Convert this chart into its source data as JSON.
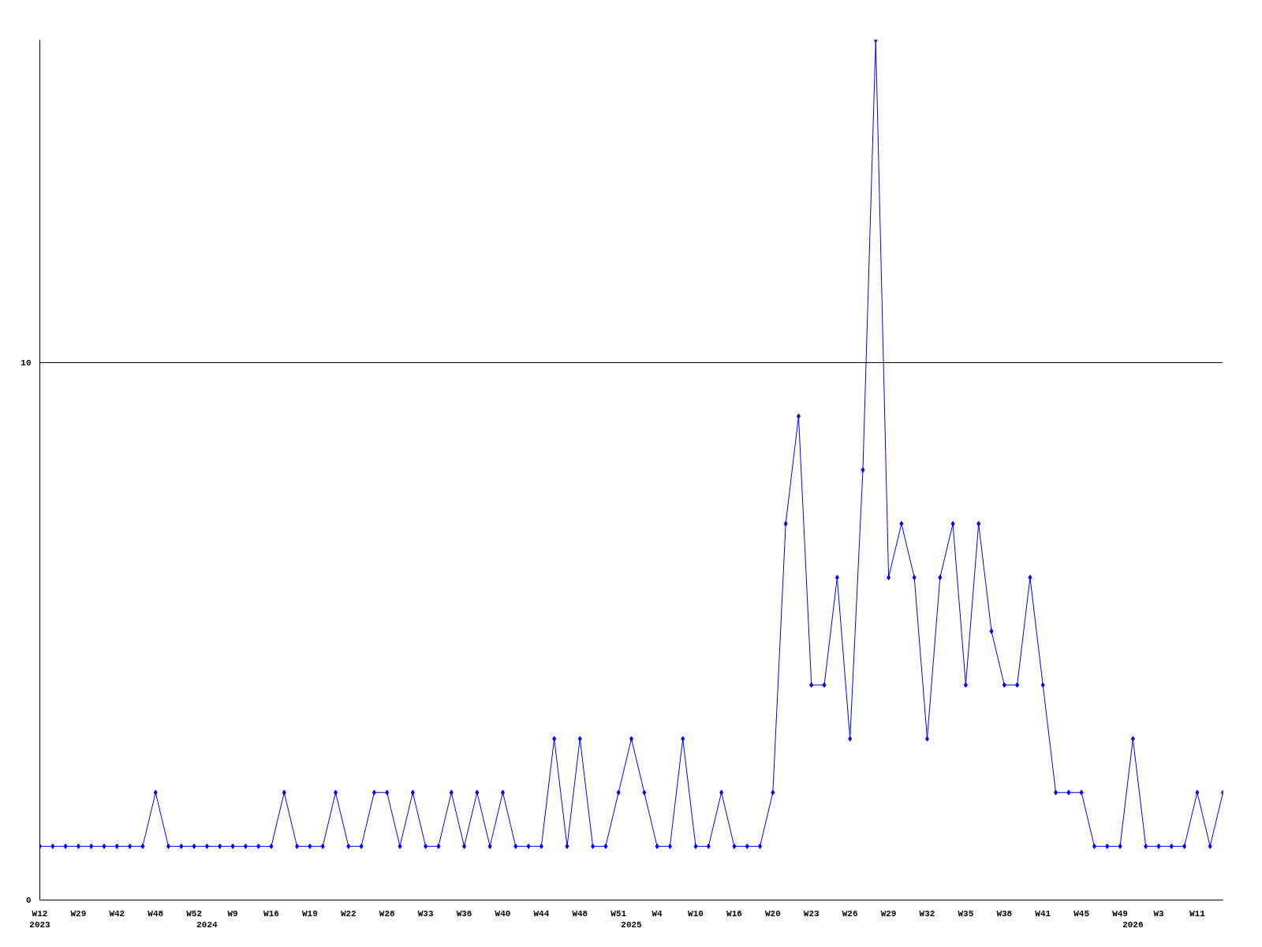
{
  "chart_data": {
    "type": "line",
    "categories": [
      "W12\n2023",
      null,
      null,
      "W29",
      null,
      null,
      "W42",
      null,
      null,
      "W48",
      null,
      null,
      "W52",
      "\n2024",
      null,
      "W9",
      null,
      null,
      "W16",
      null,
      null,
      "W19",
      null,
      null,
      "W22",
      null,
      null,
      "W28",
      null,
      null,
      "W33",
      null,
      null,
      "W36",
      null,
      null,
      "W40",
      null,
      null,
      "W44",
      null,
      null,
      "W48",
      null,
      null,
      "W51",
      "\n2025",
      null,
      "W4",
      null,
      null,
      "W10",
      null,
      null,
      "W16",
      null,
      null,
      "W20",
      null,
      null,
      "W23",
      null,
      null,
      "W26",
      null,
      null,
      "W29",
      null,
      null,
      "W32",
      null,
      null,
      "W35",
      null,
      null,
      "W38",
      null,
      null,
      "W41",
      null,
      null,
      "W45",
      null,
      null,
      "W49",
      "\n2026",
      null,
      "W3",
      null,
      null,
      "W11",
      null,
      null
    ],
    "series": [
      {
        "color": "#0000ff",
        "values": [
          1,
          1,
          1,
          1,
          1,
          1,
          1,
          1,
          1,
          2,
          1,
          1,
          1,
          1,
          1,
          1,
          1,
          1,
          1,
          2,
          1,
          1,
          1,
          2,
          1,
          1,
          2,
          2,
          1,
          2,
          1,
          1,
          2,
          1,
          2,
          1,
          2,
          1,
          1,
          1,
          3,
          1,
          3,
          1,
          1,
          2,
          3,
          2,
          1,
          1,
          3,
          1,
          1,
          2,
          1,
          1,
          1,
          2,
          7,
          9,
          4,
          4,
          6,
          3,
          8,
          16,
          6,
          7,
          6,
          3,
          6,
          7,
          4,
          7,
          5,
          4,
          4,
          6,
          4,
          2,
          2,
          2,
          1,
          1,
          1,
          3,
          1,
          1,
          1,
          1,
          2,
          1,
          2
        ]
      }
    ],
    "ylim": [
      0,
      16
    ],
    "yticks": [
      0,
      10
    ],
    "grid": "y",
    "marker": "diamond",
    "line_style": "solid"
  }
}
